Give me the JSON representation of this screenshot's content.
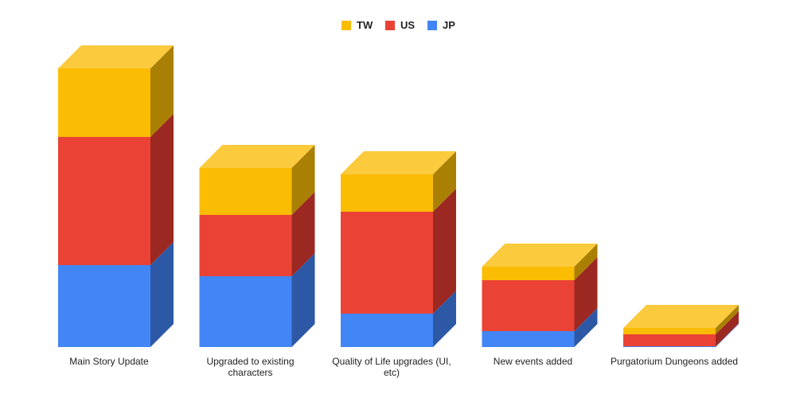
{
  "chart_data": {
    "type": "bar",
    "stacked": true,
    "style": "3d",
    "categories": [
      "Main Story Update",
      "Upgraded to existing characters",
      "Quality of Life upgrades (UI, etc)",
      "New events added",
      "Purgatorium Dungeons added"
    ],
    "series": [
      {
        "name": "JP",
        "color": "#4285f4",
        "side_color": "#2d58a5",
        "top_color": "#5b95f5",
        "values": [
          103,
          89,
          42,
          20,
          1
        ]
      },
      {
        "name": "US",
        "color": "#ea4335",
        "side_color": "#9c2822",
        "top_color": "#ee6a5f",
        "values": [
          161,
          77,
          128,
          64,
          15
        ]
      },
      {
        "name": "TW",
        "color": "#fbbc04",
        "side_color": "#a98003",
        "top_color": "#fbca3d",
        "values": [
          86,
          59,
          47,
          17,
          8
        ]
      }
    ],
    "legend_order": [
      "TW",
      "US",
      "JP"
    ],
    "legend_position": "top",
    "grid": false,
    "axis_labels_visible": false,
    "ylim": [
      0,
      350
    ]
  }
}
